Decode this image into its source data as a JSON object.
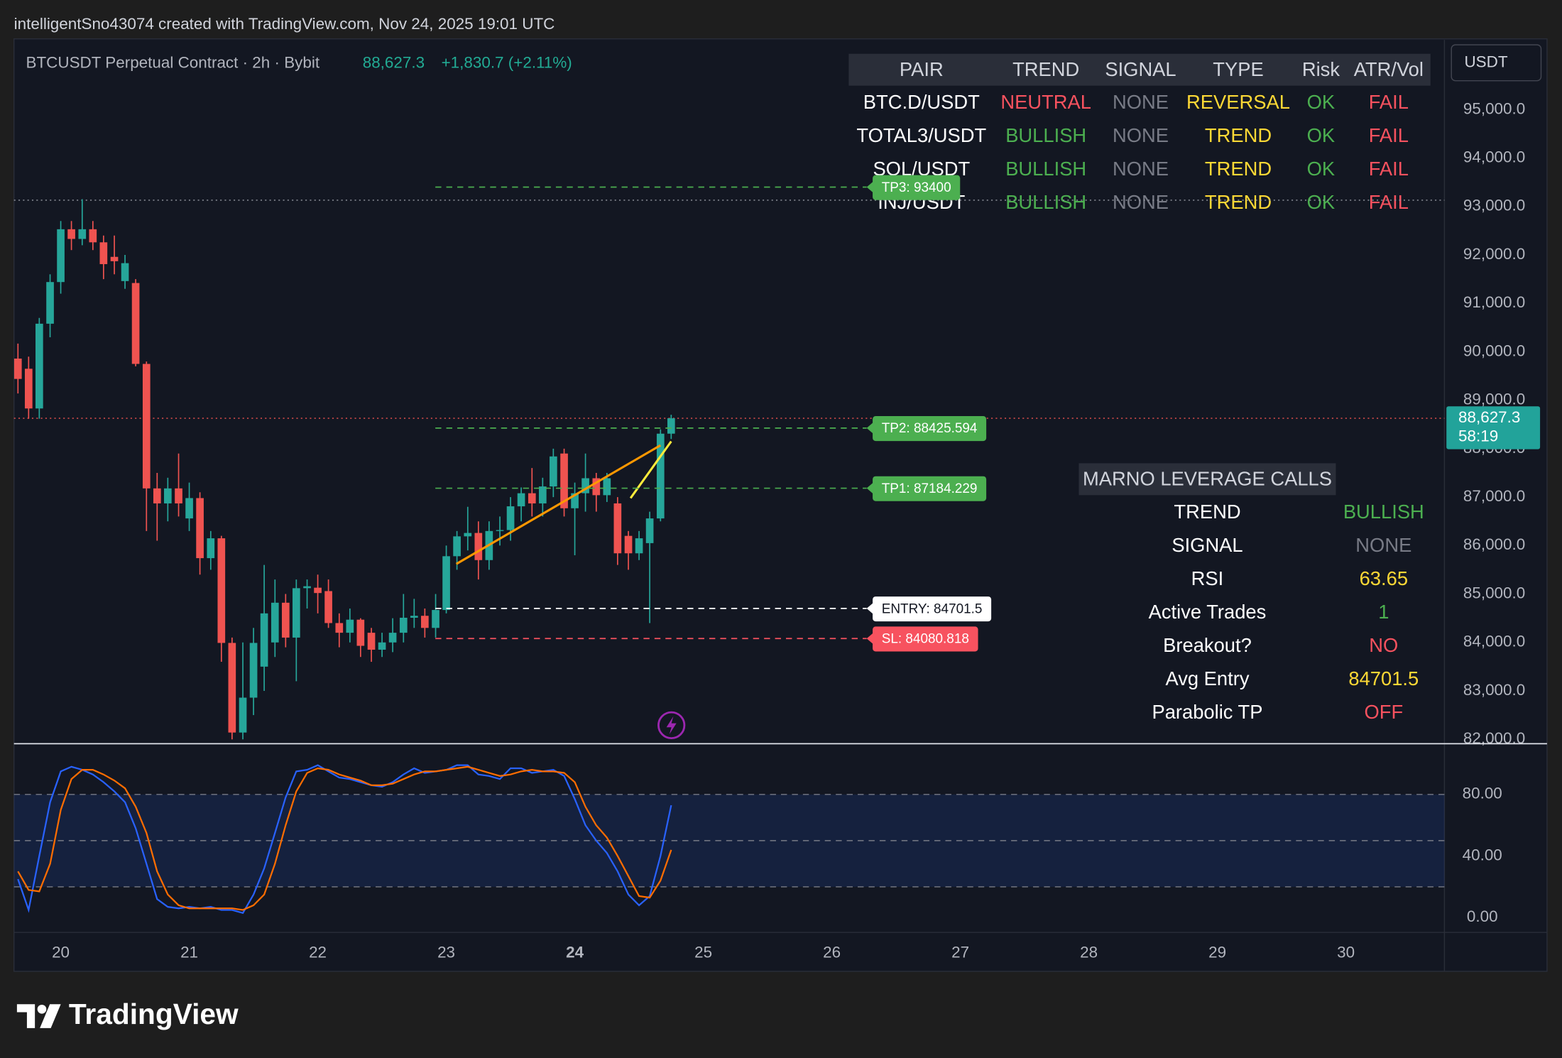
{
  "header": {
    "attribution": "intelligentSno43074 created with TradingView.com, Nov 24, 2025 19:01 UTC"
  },
  "currency": "USDT",
  "logo": "TradingView",
  "chart_data": [
    {
      "type": "candlestick",
      "title": "BTCUSDT Perpetual Contract · 2h · Bybit",
      "quote": {
        "last": "88,627.3",
        "change": "+1,830.7 (+2.11%)",
        "color": "#22ab94"
      },
      "up_color": "#26a69a",
      "down_color": "#ef5350",
      "x": [
        19.667,
        19.75,
        19.833,
        19.917,
        20,
        20.083,
        20.167,
        20.25,
        20.333,
        20.417,
        20.5,
        20.583,
        20.667,
        20.75,
        20.833,
        20.917,
        21,
        21.083,
        21.167,
        21.25,
        21.333,
        21.417,
        21.5,
        21.583,
        21.667,
        21.75,
        21.833,
        21.917,
        22,
        22.083,
        22.167,
        22.25,
        22.333,
        22.417,
        22.5,
        22.583,
        22.667,
        22.75,
        22.833,
        22.917,
        23,
        23.083,
        23.167,
        23.25,
        23.333,
        23.417,
        23.5,
        23.583,
        23.667,
        23.75,
        23.833,
        23.917,
        24,
        24.083,
        24.167,
        24.25,
        24.333,
        24.417,
        24.5,
        24.583,
        24.667,
        24.75
      ],
      "open": [
        89860,
        89650,
        88830,
        90580,
        91440,
        92530,
        92330,
        92530,
        92260,
        91960,
        91460,
        91420,
        89750,
        87180,
        86870,
        87180,
        86560,
        86980,
        85740,
        86150,
        83990,
        82140,
        82860,
        83500,
        84000,
        84820,
        84100,
        85120,
        85130,
        85060,
        84400,
        84200,
        84470,
        84200,
        83850,
        84000,
        84200,
        84510,
        84550,
        84300,
        84670,
        85780,
        86190,
        86260,
        85700,
        86300,
        86320,
        86810,
        87080,
        86870,
        87220,
        87900,
        86770,
        87080,
        87390,
        87040,
        86870,
        86200,
        85840,
        86050,
        86560,
        88310
      ],
      "high": [
        90170,
        89900,
        90700,
        91600,
        92700,
        92700,
        93150,
        92700,
        92400,
        92400,
        92000,
        91500,
        89800,
        87500,
        87400,
        87900,
        87300,
        87100,
        86300,
        86200,
        84100,
        84000,
        84300,
        85600,
        85300,
        85000,
        85300,
        85300,
        85400,
        85300,
        84600,
        84700,
        84500,
        84300,
        84200,
        84500,
        85000,
        84900,
        84700,
        85000,
        86000,
        86300,
        86800,
        86500,
        86500,
        86600,
        87000,
        87200,
        87600,
        87400,
        88000,
        88000,
        87300,
        87900,
        87500,
        87500,
        87000,
        86300,
        86300,
        86700,
        88400,
        88700
      ],
      "low": [
        89140,
        88620,
        88620,
        90300,
        91200,
        92100,
        92200,
        92100,
        91500,
        91600,
        91300,
        89700,
        86300,
        86100,
        86500,
        86600,
        86300,
        85400,
        85500,
        83600,
        82000,
        82000,
        82500,
        83000,
        83700,
        83900,
        83200,
        84700,
        84600,
        84300,
        83900,
        84000,
        83700,
        83600,
        83700,
        83800,
        84000,
        84300,
        84100,
        84100,
        84600,
        85500,
        85900,
        85300,
        85500,
        86000,
        86100,
        86500,
        86600,
        86600,
        87000,
        86600,
        85800,
        86700,
        86700,
        86900,
        85600,
        85500,
        85700,
        84400,
        86500,
        88200
      ],
      "close": [
        89440,
        88830,
        90580,
        91440,
        92530,
        92330,
        92530,
        92260,
        91810,
        91870,
        91830,
        89750,
        87180,
        86870,
        87180,
        86870,
        86980,
        85740,
        86150,
        83990,
        82140,
        82860,
        83990,
        84600,
        84820,
        84100,
        85120,
        85160,
        85020,
        84400,
        84200,
        84470,
        83930,
        83850,
        84000,
        84200,
        84510,
        84550,
        84300,
        84670,
        85780,
        86190,
        86260,
        85700,
        86300,
        86320,
        86810,
        87080,
        86870,
        87220,
        87840,
        86770,
        87080,
        87390,
        87040,
        87390,
        85840,
        85840,
        86150,
        86560,
        88310,
        88627.3
      ],
      "xlim": [
        19.636,
        30.767
      ],
      "xticks": [
        20,
        21,
        22,
        23,
        24,
        25,
        26,
        27,
        28,
        29,
        30
      ],
      "highlight_xtick": 24,
      "ylim": [
        81920,
        96440
      ],
      "yticks": [
        {
          "value": 82000,
          "label": "82,000.0"
        },
        {
          "value": 83000,
          "label": "83,000.0"
        },
        {
          "value": 84000,
          "label": "84,000.0"
        },
        {
          "value": 85000,
          "label": "85,000.0"
        },
        {
          "value": 86000,
          "label": "86,000.0"
        },
        {
          "value": 87000,
          "label": "87,000.0"
        },
        {
          "value": 88000,
          "label": "88,000.0"
        },
        {
          "value": 89000,
          "label": "89,000.0"
        },
        {
          "value": 90000,
          "label": "90,000.0"
        },
        {
          "value": 91000,
          "label": "91,000.0"
        },
        {
          "value": 92000,
          "label": "92,000.0"
        },
        {
          "value": 93000,
          "label": "93,000.0"
        },
        {
          "value": 94000,
          "label": "94,000.0"
        },
        {
          "value": 95000,
          "label": "95,000.0"
        }
      ],
      "last_price": {
        "value": 88627.3,
        "label": "88,627.3",
        "countdown": "58:19",
        "color": "#22a39a"
      },
      "dotted_levels": [
        {
          "value": 93130,
          "color": "#9598a1"
        },
        {
          "value": 88627.3,
          "color": "#ef5350"
        }
      ],
      "levels": [
        {
          "label": "TP3: 93400",
          "value": 93400,
          "color": "#4caf50",
          "text_color": "#ffffff"
        },
        {
          "label": "TP2: 88425.594",
          "value": 88425.594,
          "color": "#4caf50",
          "text_color": "#ffffff"
        },
        {
          "label": "TP1: 87184.229",
          "value": 87184.229,
          "color": "#4caf50",
          "text_color": "#ffffff"
        },
        {
          "label": "ENTRY: 84701.5",
          "value": 84701.5,
          "color": "#ffffff",
          "text_color": "#131722"
        },
        {
          "label": "SL: 84080.818",
          "value": 84080.818,
          "color": "#f7525f",
          "text_color": "#ffffff"
        }
      ],
      "trendlines": [
        {
          "color": "#ff9800",
          "x": [
            23.078,
            24.667
          ],
          "y": [
            85620,
            88070
          ]
        },
        {
          "color": "#ffeb3b",
          "x": [
            24.434,
            24.75
          ],
          "y": [
            86980,
            88150
          ]
        }
      ]
    },
    {
      "type": "line",
      "series": [
        {
          "color": "#2962ff",
          "values": [
            25,
            5,
            40,
            75,
            95,
            98,
            96,
            93,
            88,
            82,
            75,
            58,
            35,
            12,
            7,
            6,
            7,
            6,
            7,
            5,
            5,
            3,
            15,
            32,
            55,
            78,
            95,
            96,
            99,
            95,
            91,
            90,
            88,
            86,
            85,
            88,
            93,
            97,
            94,
            95,
            96,
            99,
            99,
            93,
            92,
            90,
            97,
            97,
            94,
            95,
            96,
            92,
            77,
            60,
            50,
            42,
            30,
            15,
            8,
            14,
            40,
            73
          ]
        },
        {
          "color": "#ff6d00",
          "values": [
            30,
            18,
            17,
            35,
            70,
            90,
            96,
            96,
            93,
            89,
            84,
            72,
            55,
            30,
            15,
            8,
            6,
            6,
            6,
            6,
            6,
            5,
            8,
            15,
            35,
            60,
            82,
            94,
            97,
            96,
            93,
            91,
            89,
            86,
            86,
            87,
            90,
            93,
            95,
            95,
            96,
            97,
            98,
            96,
            94,
            92,
            93,
            95,
            96,
            95,
            95,
            94,
            88,
            72,
            60,
            52,
            40,
            27,
            14,
            13,
            24,
            44
          ]
        }
      ],
      "ylim": [
        -9,
        112
      ],
      "yticks": [
        {
          "value": 80,
          "label": "80.00"
        },
        {
          "value": 40,
          "label": "40.00"
        },
        {
          "value": 0,
          "label": "0.00"
        }
      ],
      "band": [
        20,
        80
      ],
      "levels": [
        80,
        50,
        20
      ]
    }
  ],
  "pair_table": {
    "columns": [
      "PAIR",
      "TREND",
      "SIGNAL",
      "TYPE",
      "Risk",
      "ATR/Vol"
    ],
    "rows": [
      [
        "BTC.D/USDT",
        "NEUTRAL",
        "NONE",
        "REVERSAL",
        "OK",
        "FAIL"
      ],
      [
        "TOTAL3/USDT",
        "BULLISH",
        "NONE",
        "TREND",
        "OK",
        "FAIL"
      ],
      [
        "SOL/USDT",
        "BULLISH",
        "NONE",
        "TREND",
        "OK",
        "FAIL"
      ],
      [
        "INJ/USDT",
        "BULLISH",
        "NONE",
        "TREND",
        "OK",
        "FAIL"
      ]
    ],
    "cell_colors": [
      [
        "#ffffff",
        "#f7525f",
        "#787b86",
        "#fdd835",
        "#4caf50",
        "#f7525f"
      ],
      [
        "#ffffff",
        "#4caf50",
        "#787b86",
        "#fdd835",
        "#4caf50",
        "#f7525f"
      ],
      [
        "#ffffff",
        "#4caf50",
        "#787b86",
        "#fdd835",
        "#4caf50",
        "#f7525f"
      ],
      [
        "#ffffff",
        "#4caf50",
        "#787b86",
        "#fdd835",
        "#4caf50",
        "#f7525f"
      ]
    ]
  },
  "calls_table": {
    "title": "MARNO LEVERAGE CALLS",
    "rows": [
      [
        "TREND",
        "BULLISH"
      ],
      [
        "SIGNAL",
        "NONE"
      ],
      [
        "RSI",
        "63.65"
      ],
      [
        "Active Trades",
        "1"
      ],
      [
        "Breakout?",
        "NO"
      ],
      [
        "Avg Entry",
        "84701.5"
      ],
      [
        "Parabolic TP",
        "OFF"
      ]
    ],
    "value_colors": [
      "#4caf50",
      "#787b86",
      "#fdd835",
      "#4caf50",
      "#f7525f",
      "#fdd835",
      "#f7525f"
    ]
  }
}
